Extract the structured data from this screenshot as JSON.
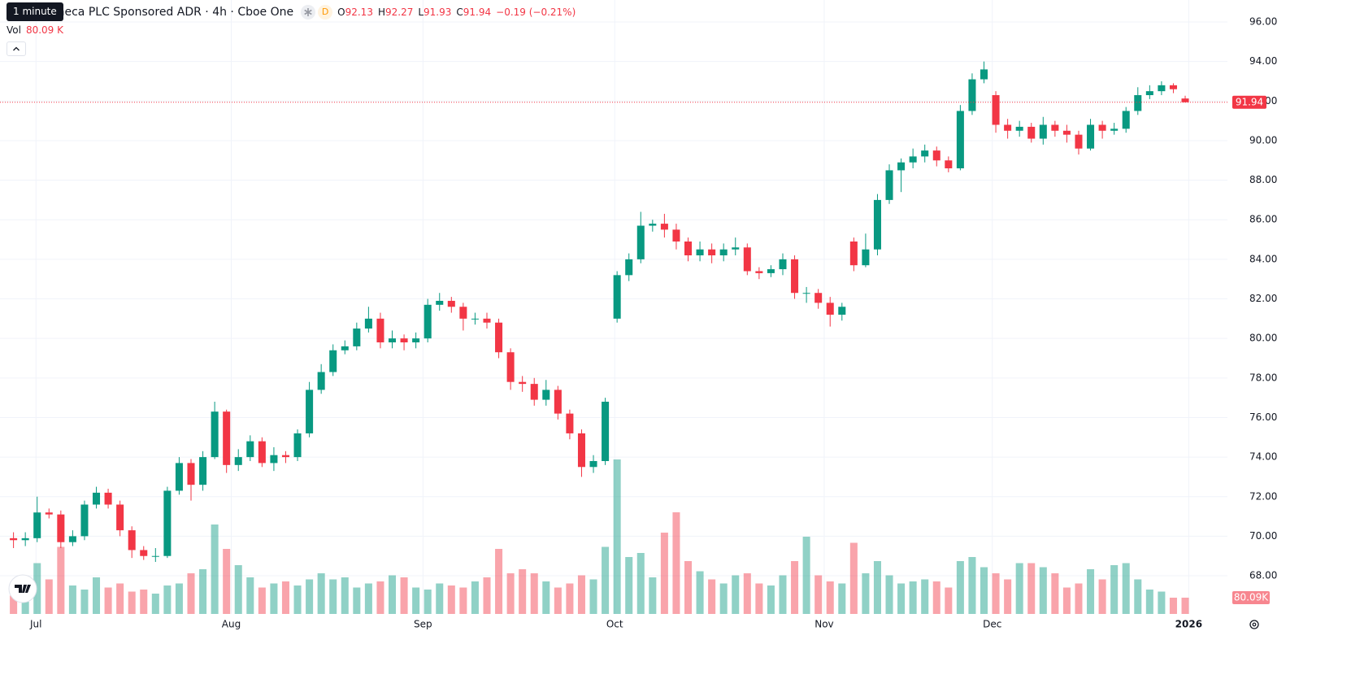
{
  "chart_data": {
    "type": "candlestick",
    "title": "eneca PLC Sponsored ADR · 4h · Cboe One",
    "tooltip": "1 minute",
    "interval_badge": "D",
    "legend_labels": {
      "open": "O",
      "high": "H",
      "low": "L",
      "close": "C"
    },
    "change": "−0.19 (−0.21%)",
    "up_color": "#089981",
    "down_color": "#f23645",
    "open": [
      69.9,
      69.8,
      69.9,
      71.2,
      71.1,
      69.7,
      70.0,
      71.6,
      72.2,
      71.6,
      70.3,
      69.3,
      69.0,
      69.0,
      72.3,
      73.7,
      72.6,
      74.0,
      76.3,
      73.6,
      74.0,
      74.8,
      73.7,
      74.1,
      74.0,
      75.2,
      77.4,
      78.3,
      79.4,
      79.6,
      80.5,
      81.0,
      79.8,
      80.0,
      79.8,
      80.0,
      81.7,
      81.9,
      81.6,
      81.0,
      81.0,
      80.8,
      79.3,
      77.8,
      77.7,
      76.9,
      77.4,
      76.2,
      75.2,
      73.5,
      73.8,
      81.0,
      83.2,
      84.0,
      85.7,
      85.8,
      85.5,
      84.9,
      84.2,
      84.5,
      84.2,
      84.5,
      84.6,
      83.4,
      83.3,
      83.5,
      84.0,
      82.3,
      82.3,
      81.8,
      81.2,
      84.9,
      83.7,
      84.5,
      87.0,
      88.5,
      88.9,
      89.2,
      89.5,
      89.0,
      88.6,
      91.5,
      93.1,
      92.3,
      90.8,
      90.5,
      90.7,
      90.1,
      90.8,
      90.5,
      90.3,
      89.6,
      90.8,
      90.5,
      90.6,
      91.5,
      92.3,
      92.5,
      92.8,
      92.13
    ],
    "high": [
      70.2,
      70.2,
      72.0,
      71.4,
      71.3,
      70.3,
      71.8,
      72.5,
      72.4,
      71.8,
      70.5,
      69.5,
      69.4,
      72.5,
      74.0,
      73.9,
      74.3,
      76.8,
      76.4,
      74.4,
      75.1,
      75.0,
      74.5,
      74.3,
      75.4,
      77.8,
      78.7,
      79.7,
      79.9,
      80.8,
      81.6,
      81.3,
      80.4,
      80.2,
      80.3,
      82.0,
      82.3,
      82.1,
      81.8,
      81.3,
      81.3,
      81.0,
      79.5,
      78.1,
      78.0,
      77.9,
      77.6,
      76.4,
      75.4,
      74.1,
      77.0,
      83.4,
      84.3,
      86.4,
      86.0,
      86.3,
      85.8,
      85.1,
      84.9,
      84.8,
      84.8,
      85.1,
      84.8,
      83.6,
      83.7,
      84.3,
      84.2,
      82.6,
      82.5,
      82.1,
      81.8,
      85.1,
      85.3,
      87.3,
      88.8,
      89.1,
      89.6,
      89.8,
      89.7,
      89.2,
      91.8,
      93.4,
      94.0,
      92.5,
      91.1,
      91.0,
      90.9,
      91.2,
      91.0,
      90.8,
      90.5,
      91.1,
      91.0,
      90.9,
      91.7,
      92.7,
      92.8,
      93.0,
      92.9,
      92.27
    ],
    "low": [
      69.4,
      69.5,
      69.7,
      70.9,
      69.4,
      69.5,
      69.8,
      71.4,
      71.4,
      70.0,
      68.9,
      68.8,
      68.7,
      68.9,
      72.1,
      71.8,
      72.3,
      73.9,
      73.2,
      73.3,
      73.8,
      73.5,
      73.3,
      73.7,
      73.8,
      75.0,
      77.2,
      78.1,
      79.2,
      79.4,
      80.3,
      79.5,
      79.5,
      79.4,
      79.5,
      79.8,
      81.4,
      81.3,
      80.4,
      80.7,
      80.5,
      79.0,
      77.4,
      77.3,
      76.6,
      76.6,
      75.9,
      74.9,
      73.0,
      73.2,
      73.6,
      80.8,
      82.9,
      83.8,
      85.4,
      85.1,
      84.5,
      83.9,
      83.9,
      83.8,
      83.9,
      84.2,
      83.2,
      83.0,
      83.1,
      83.2,
      82.0,
      81.8,
      81.5,
      80.6,
      80.9,
      83.4,
      83.6,
      84.2,
      86.8,
      87.4,
      88.6,
      88.9,
      88.7,
      88.4,
      88.5,
      91.3,
      92.9,
      90.4,
      90.1,
      90.2,
      89.9,
      89.8,
      90.2,
      89.9,
      89.3,
      89.5,
      90.1,
      90.3,
      90.4,
      91.3,
      92.1,
      92.3,
      92.4,
      91.93
    ],
    "close": [
      69.8,
      69.9,
      71.2,
      71.1,
      69.7,
      70.0,
      71.6,
      72.2,
      71.6,
      70.3,
      69.3,
      69.0,
      69.0,
      72.3,
      73.7,
      72.6,
      74.0,
      76.3,
      73.6,
      74.0,
      74.8,
      73.7,
      74.1,
      74.0,
      75.2,
      77.4,
      78.3,
      79.4,
      79.6,
      80.5,
      81.0,
      79.8,
      80.0,
      79.8,
      80.0,
      81.7,
      81.9,
      81.6,
      81.0,
      81.0,
      80.8,
      79.3,
      77.8,
      77.7,
      76.9,
      77.4,
      76.2,
      75.2,
      73.5,
      73.8,
      76.8,
      83.2,
      84.0,
      85.7,
      85.8,
      85.5,
      84.9,
      84.2,
      84.5,
      84.2,
      84.5,
      84.6,
      83.4,
      83.3,
      83.5,
      84.0,
      82.3,
      82.3,
      81.8,
      81.2,
      81.6,
      83.7,
      84.5,
      87.0,
      88.5,
      88.9,
      89.2,
      89.5,
      89.0,
      88.6,
      91.5,
      93.1,
      93.6,
      90.8,
      90.5,
      90.7,
      90.1,
      90.8,
      90.5,
      90.3,
      89.6,
      90.8,
      90.5,
      90.6,
      91.5,
      92.3,
      92.5,
      92.8,
      92.6,
      91.94
    ],
    "volume": {
      "name": "Vol",
      "last_label": "80.09 K",
      "axis_label": "80.09K",
      "values": [
        90000,
        60000,
        250000,
        170000,
        330000,
        140000,
        120000,
        180000,
        130000,
        150000,
        110000,
        120000,
        100000,
        140000,
        150000,
        200000,
        220000,
        440000,
        320000,
        240000,
        180000,
        130000,
        150000,
        160000,
        140000,
        170000,
        200000,
        170000,
        180000,
        130000,
        150000,
        160000,
        190000,
        180000,
        130000,
        120000,
        150000,
        140000,
        130000,
        160000,
        180000,
        320000,
        200000,
        220000,
        200000,
        160000,
        130000,
        150000,
        190000,
        170000,
        330000,
        760000,
        280000,
        300000,
        180000,
        400000,
        500000,
        260000,
        210000,
        170000,
        150000,
        190000,
        200000,
        150000,
        140000,
        190000,
        260000,
        380000,
        190000,
        160000,
        150000,
        350000,
        200000,
        260000,
        190000,
        150000,
        160000,
        170000,
        160000,
        130000,
        260000,
        280000,
        230000,
        200000,
        170000,
        250000,
        250000,
        230000,
        200000,
        130000,
        150000,
        220000,
        170000,
        240000,
        250000,
        170000,
        120000,
        110000,
        80000,
        80090
      ]
    },
    "xlim": [
      -1.14,
      102.57
    ],
    "xticks": [
      {
        "value": 1.9,
        "label": "Jul"
      },
      {
        "value": 18.4,
        "label": "Aug"
      },
      {
        "value": 34.6,
        "label": "Sep"
      },
      {
        "value": 50.8,
        "label": "Oct"
      },
      {
        "value": 68.5,
        "label": "Nov"
      },
      {
        "value": 82.7,
        "label": "Dec"
      },
      {
        "value": 99.3,
        "label": "2026"
      }
    ],
    "ylim": [
      66.07,
      97.11
    ],
    "yticks": [
      {
        "value": 68,
        "label": "68.00"
      },
      {
        "value": 70,
        "label": "70.00"
      },
      {
        "value": 72,
        "label": "72.00"
      },
      {
        "value": 74,
        "label": "74.00"
      },
      {
        "value": 76,
        "label": "76.00"
      },
      {
        "value": 78,
        "label": "78.00"
      },
      {
        "value": 80,
        "label": "80.00"
      },
      {
        "value": 82,
        "label": "82.00"
      },
      {
        "value": 84,
        "label": "84.00"
      },
      {
        "value": 86,
        "label": "86.00"
      },
      {
        "value": 88,
        "label": "88.00"
      },
      {
        "value": 90,
        "label": "90.00"
      },
      {
        "value": 92,
        "label": "92.00"
      },
      {
        "value": 94,
        "label": "94.00"
      },
      {
        "value": 96,
        "label": "96.00"
      }
    ],
    "grid": true
  }
}
